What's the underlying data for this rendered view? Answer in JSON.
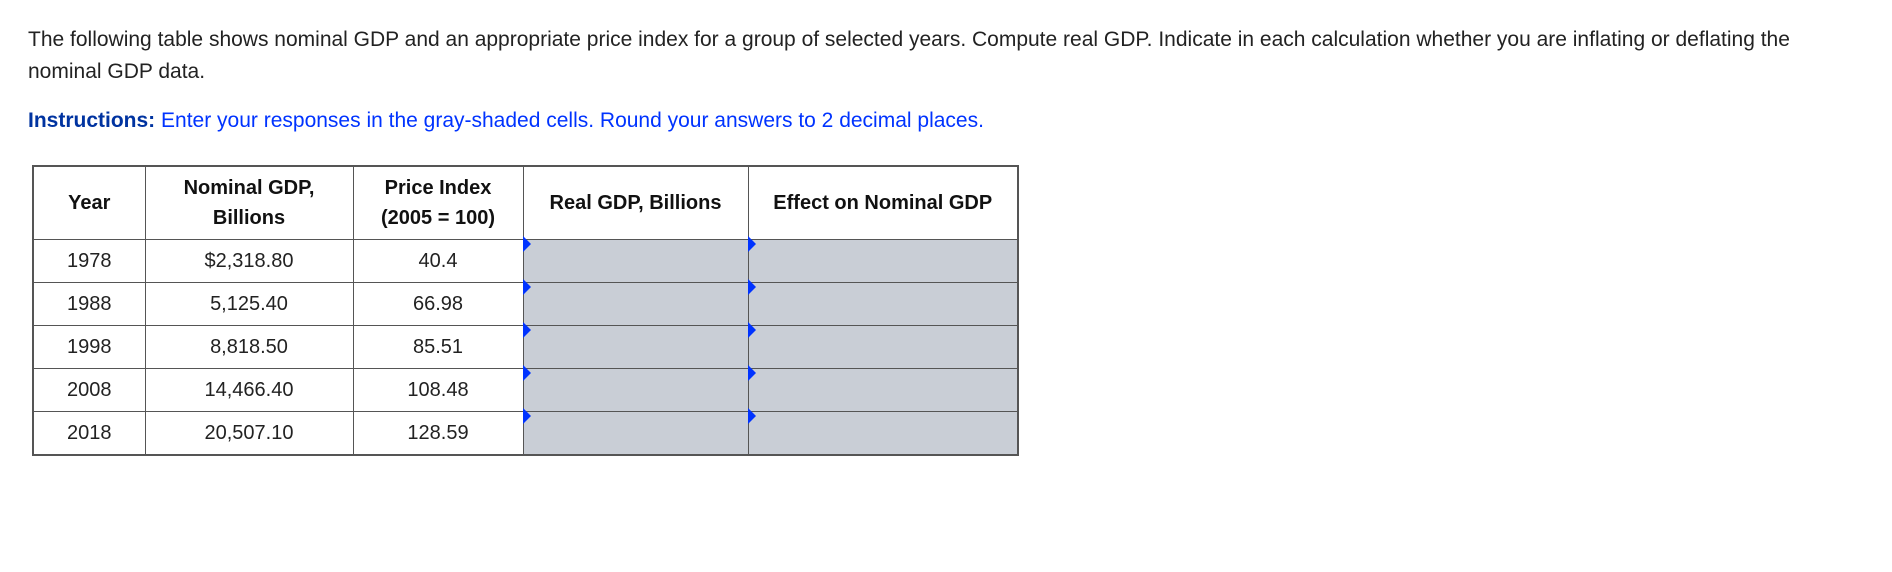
{
  "question": "The following table shows nominal GDP and an appropriate price index for a group of selected years. Compute real GDP. Indicate in each calculation whether you are inflating or deflating the nominal GDP data.",
  "instructions": {
    "label": "Instructions:",
    "text": " Enter your responses in the gray-shaded cells. Round your answers to 2 decimal places."
  },
  "table": {
    "columns": {
      "year": "Year",
      "nominal": "Nominal GDP, Billions",
      "price": "Price Index (2005 = 100)",
      "real": "Real GDP, Billions",
      "effect": "Effect on Nominal GDP"
    },
    "rows": [
      {
        "year": "1978",
        "nominal": "$2,318.80",
        "price": "40.4"
      },
      {
        "year": "1988",
        "nominal": "5,125.40",
        "price": "66.98"
      },
      {
        "year": "1998",
        "nominal": "8,818.50",
        "price": "85.51"
      },
      {
        "year": "2008",
        "nominal": "14,466.40",
        "price": "108.48"
      },
      {
        "year": "2018",
        "nominal": "20,507.10",
        "price": "128.59"
      }
    ]
  },
  "colors": {
    "instructions_label": "#0033a0",
    "instructions_text": "#0033ff",
    "cell_input_bg": "#c9ced6",
    "border": "#555555",
    "text": "#222222",
    "marker": "#0033ff"
  }
}
